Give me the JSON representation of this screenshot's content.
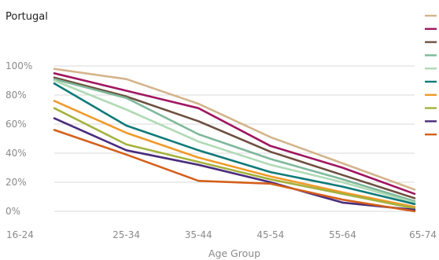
{
  "chart_data": {
    "type": "line",
    "title": "Portugal",
    "xlabel": "Age Group",
    "ylabel": "",
    "categories": [
      "16-24",
      "25-34",
      "35-44",
      "45-54",
      "55-64",
      "65-74"
    ],
    "ylim": [
      0,
      100
    ],
    "yticks": [
      "0%",
      "20%",
      "40%",
      "60%",
      "80%",
      "100%"
    ],
    "grid": true,
    "legend_position": "right",
    "series": [
      {
        "color": "#d4b48c",
        "values": [
          98,
          91,
          74,
          51,
          33,
          15
        ]
      },
      {
        "color": "#a01660",
        "values": [
          95,
          83,
          71,
          45,
          30,
          12
        ]
      },
      {
        "color": "#6e5040",
        "values": [
          92,
          79,
          62,
          41,
          25,
          9
        ]
      },
      {
        "color": "#7db89a",
        "values": [
          91,
          78,
          53,
          36,
          22,
          7
        ]
      },
      {
        "color": "#b0dab6",
        "values": [
          90,
          70,
          48,
          32,
          20,
          6
        ]
      },
      {
        "color": "#0f7a78",
        "values": [
          88,
          59,
          42,
          27,
          17,
          5
        ]
      },
      {
        "color": "#f09a2a",
        "values": [
          76,
          54,
          37,
          24,
          13,
          3
        ]
      },
      {
        "color": "#a4b23c",
        "values": [
          71,
          46,
          34,
          22,
          12,
          2
        ]
      },
      {
        "color": "#4a2c7c",
        "values": [
          64,
          42,
          32,
          20,
          6,
          1
        ]
      },
      {
        "color": "#d4601c",
        "values": [
          56,
          39,
          21,
          19,
          8,
          0
        ]
      }
    ]
  }
}
